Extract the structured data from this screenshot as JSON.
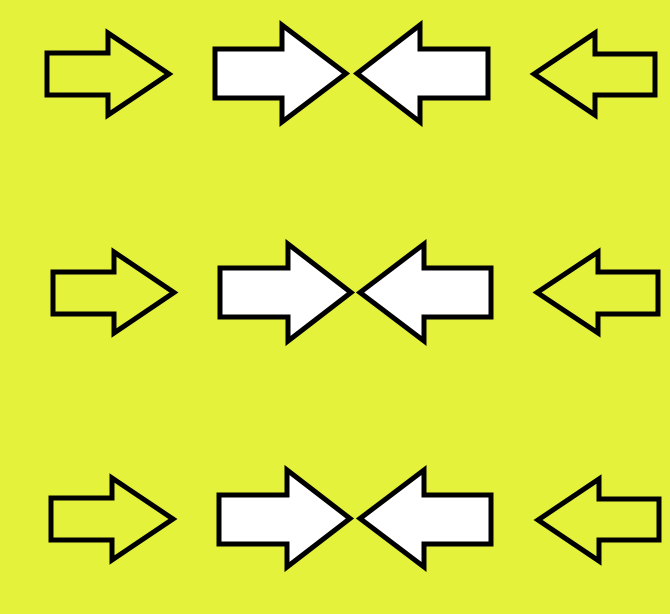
{
  "colors": {
    "background": "#e4f23c",
    "arrow_fill_outer": "#e4f23c",
    "arrow_fill_inner": "#ffffff",
    "arrow_stroke": "#000000"
  },
  "rows": [
    {
      "arrows": [
        {
          "name": "row-1-outer-left-arrow-icon",
          "direction": "right",
          "style": "outer"
        },
        {
          "name": "row-1-inner-left-arrow-icon",
          "direction": "right",
          "style": "inner"
        },
        {
          "name": "row-1-inner-right-arrow-icon",
          "direction": "left",
          "style": "inner"
        },
        {
          "name": "row-1-outer-right-arrow-icon",
          "direction": "left",
          "style": "outer"
        }
      ]
    },
    {
      "arrows": [
        {
          "name": "row-2-outer-left-arrow-icon",
          "direction": "right",
          "style": "outer"
        },
        {
          "name": "row-2-inner-left-arrow-icon",
          "direction": "right",
          "style": "inner"
        },
        {
          "name": "row-2-inner-right-arrow-icon",
          "direction": "left",
          "style": "inner"
        },
        {
          "name": "row-2-outer-right-arrow-icon",
          "direction": "left",
          "style": "outer"
        }
      ]
    },
    {
      "arrows": [
        {
          "name": "row-3-outer-left-arrow-icon",
          "direction": "right",
          "style": "outer"
        },
        {
          "name": "row-3-inner-left-arrow-icon",
          "direction": "right",
          "style": "inner"
        },
        {
          "name": "row-3-inner-right-arrow-icon",
          "direction": "left",
          "style": "inner"
        },
        {
          "name": "row-3-outer-right-arrow-icon",
          "direction": "left",
          "style": "outer"
        }
      ]
    }
  ]
}
